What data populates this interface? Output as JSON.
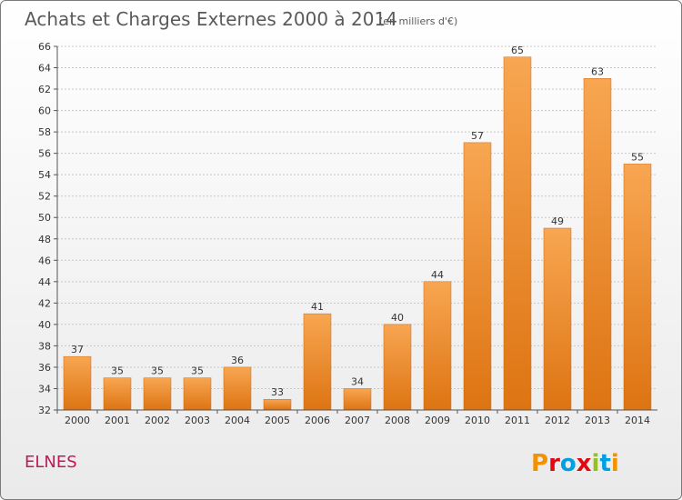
{
  "title": "Achats et Charges Externes 2000 à 2014",
  "unit_note": "(en milliers d'€)",
  "commune": "ELNES",
  "logo": {
    "text": "Proxiti",
    "colors": [
      "#f39200",
      "#e30613",
      "#009fe3",
      "#e30613",
      "#95c11f",
      "#009fe3",
      "#f39200"
    ]
  },
  "colors": {
    "bar_top": "#f8a652",
    "bar_bottom": "#dd7412",
    "bar_edge": "#cc6a10",
    "grid": "#c8c8c8"
  },
  "chart_data": {
    "type": "bar",
    "categories": [
      "2000",
      "2001",
      "2002",
      "2003",
      "2004",
      "2005",
      "2006",
      "2007",
      "2008",
      "2009",
      "2010",
      "2011",
      "2012",
      "2013",
      "2014"
    ],
    "values": [
      37,
      35,
      35,
      35,
      36,
      33,
      41,
      34,
      40,
      44,
      57,
      65,
      49,
      63,
      55
    ],
    "ylim": [
      32,
      66
    ],
    "ytick_step": 2,
    "grid": true,
    "data_labels": true
  }
}
